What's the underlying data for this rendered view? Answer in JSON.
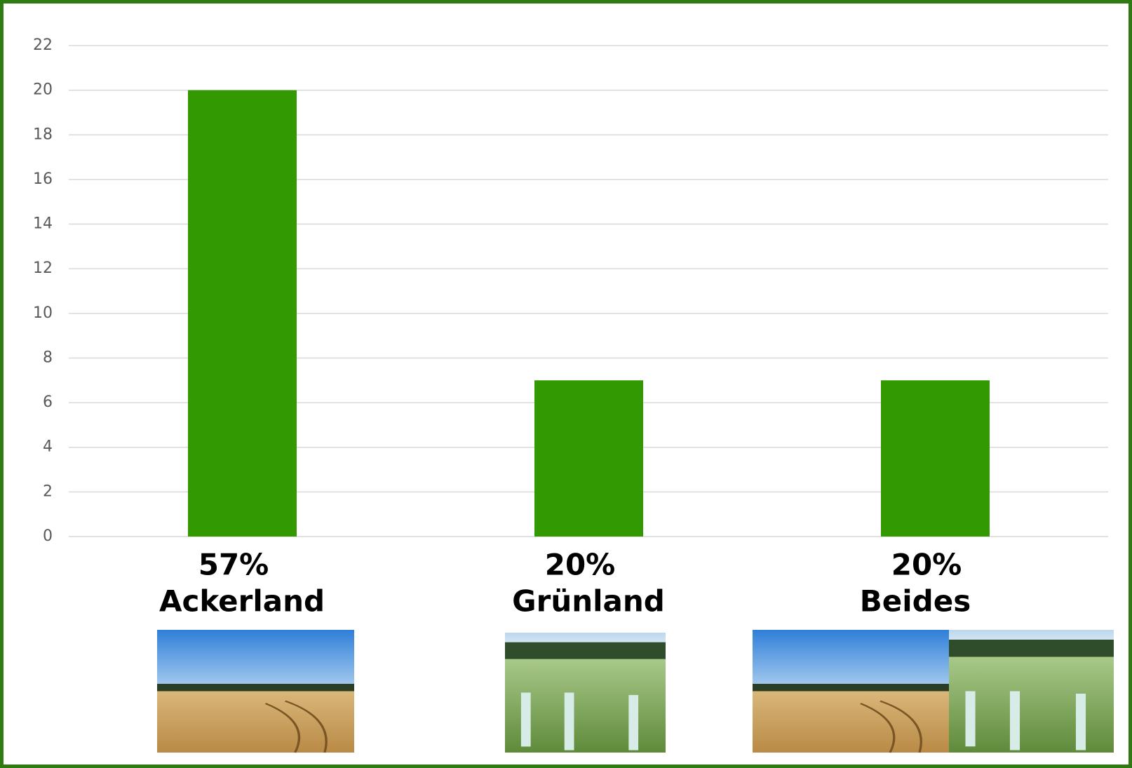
{
  "chart_data": {
    "type": "bar",
    "categories": [
      "Ackerland",
      "Grünland",
      "Beides"
    ],
    "values": [
      20,
      7,
      7
    ],
    "share_labels": [
      "57%",
      "20%",
      "20%"
    ],
    "color": "#339900",
    "ylim": [
      0,
      22
    ],
    "yticks": [
      0,
      2,
      4,
      6,
      8,
      10,
      12,
      14,
      16,
      18,
      20,
      22
    ],
    "grid": true
  }
}
